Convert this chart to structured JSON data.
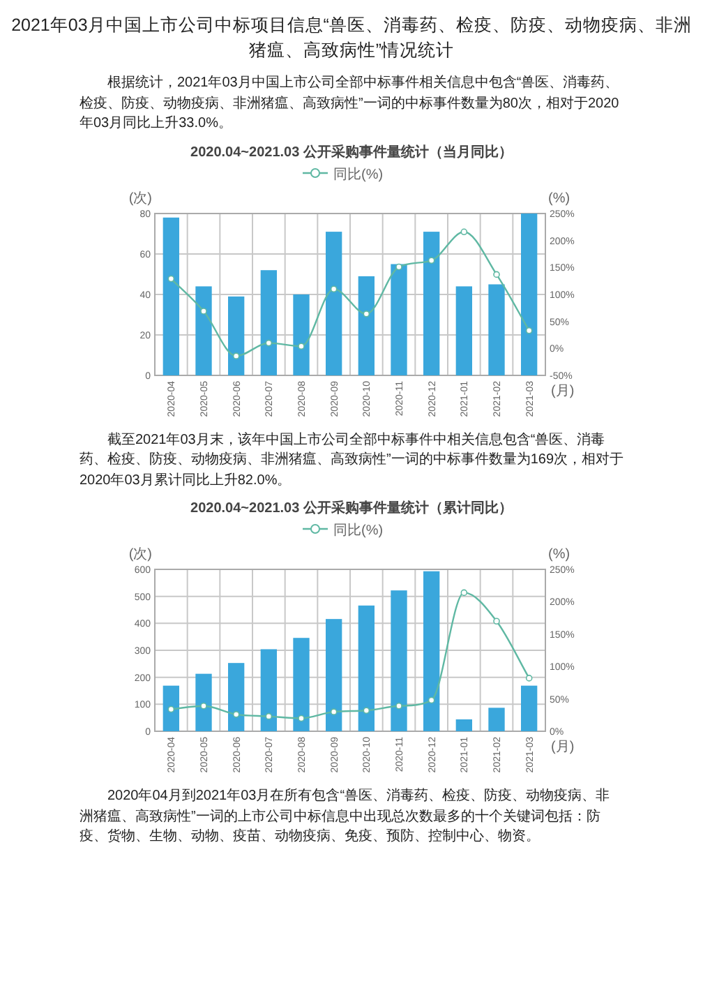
{
  "chart_data": [
    {
      "type": "bar",
      "title": "2020.04~2021.03 公开采购事件量统计（当月同比）",
      "annotations": [
        "2021年03月中国上市公司中标项目信息“兽医、消毒药、检疫、防疫、动物疫病、非洲猪瘟、高致病性”情况统计",
        "根据统计，2021年03月中国上市公司全部中标事件相关信息中包含“兽医、消毒药、检疫、防疫、动物疫病、非洲猪瘟、高致病性”一词的中标事件数量为80次，相对于2020年03月同比上升33.0%。"
      ],
      "categories": [
        "2020-04",
        "2020-05",
        "2020-06",
        "2020-07",
        "2020-08",
        "2020-09",
        "2020-10",
        "2020-11",
        "2020-12",
        "2021-01",
        "2021-02",
        "2021-03"
      ],
      "series": [
        {
          "color": "#3aa7dc",
          "values": [
            78,
            44,
            39,
            52,
            40,
            71,
            49,
            55,
            71,
            44,
            45,
            80
          ]
        },
        {
          "type": "line",
          "axis": "y2",
          "name": "同比(%)",
          "color": "#5fb8a3",
          "values": [
            129,
            69,
            -14,
            10,
            4,
            110,
            64,
            151,
            163,
            216,
            137,
            33
          ]
        }
      ],
      "ylabel": "(次)",
      "y2label": "(%)",
      "xlabel": "(月)",
      "ylim": [
        0,
        80
      ],
      "yticks": [
        0,
        20,
        40,
        60,
        80
      ],
      "y2lim": [
        -50,
        250
      ],
      "y2ticks": [
        {
          "value": -50,
          "label": "-50%"
        },
        {
          "value": 0,
          "label": "0%"
        },
        {
          "value": 50,
          "label": "50%"
        },
        {
          "value": 100,
          "label": "100%"
        },
        {
          "value": 150,
          "label": "150%"
        },
        {
          "value": 200,
          "label": "200%"
        },
        {
          "value": 250,
          "label": "250%"
        }
      ],
      "grid": true,
      "legend": "top",
      "marker": "circle"
    },
    {
      "type": "bar",
      "title": "2020.04~2021.03 公开采购事件量统计（累计同比）",
      "annotations": [
        "截至2021年03月末，该年中国上市公司全部中标事件中相关信息包含“兽医、消毒药、检疫、防疫、动物疫病、非洲猪瘟、高致病性”一词的中标事件数量为169次，相对于2020年03月累计同比上升82.0%。",
        "2020年04月到2021年03月在所有包含“兽医、消毒药、检疫、防疫、动物疫病、非洲猪瘟、高致病性”一词的上市公司中标信息中出现总次数最多的十个关键词包括：防疫、货物、生物、动物、疫苗、动物疫病、免疫、预防、控制中心、物资。"
      ],
      "categories": [
        "2020-04",
        "2020-05",
        "2020-06",
        "2020-07",
        "2020-08",
        "2020-09",
        "2020-10",
        "2020-11",
        "2020-12",
        "2021-01",
        "2021-02",
        "2021-03"
      ],
      "series": [
        {
          "color": "#3aa7dc",
          "values": [
            169,
            213,
            253,
            304,
            346,
            416,
            466,
            522,
            593,
            44,
            87,
            169
          ]
        },
        {
          "type": "line",
          "axis": "y2",
          "name": "同比(%)",
          "color": "#5fb8a3",
          "values": [
            34,
            39,
            26,
            23,
            20,
            30,
            32,
            39,
            48,
            214,
            170,
            82
          ]
        }
      ],
      "ylabel": "(次)",
      "y2label": "(%)",
      "xlabel": "(月)",
      "ylim": [
        0,
        600
      ],
      "yticks": [
        0,
        100,
        200,
        300,
        400,
        500,
        600
      ],
      "y2lim": [
        0,
        250
      ],
      "y2ticks": [
        {
          "value": 0,
          "label": "0%"
        },
        {
          "value": 50,
          "label": "50%"
        },
        {
          "value": 100,
          "label": "100%"
        },
        {
          "value": 150,
          "label": "150%"
        },
        {
          "value": 200,
          "label": "200%"
        },
        {
          "value": 250,
          "label": "250%"
        }
      ],
      "grid": true,
      "legend": "top",
      "marker": "circle"
    }
  ]
}
